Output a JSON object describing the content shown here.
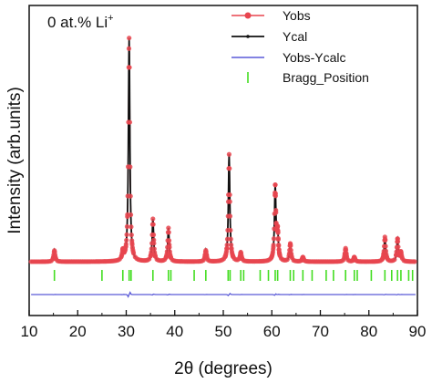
{
  "chart_data": {
    "type": "line",
    "title": "",
    "xlabel": "2θ (degrees)",
    "ylabel": "Intensity (arb.units)",
    "xlim": [
      10,
      90
    ],
    "xticks": [
      10,
      20,
      30,
      40,
      50,
      60,
      70,
      80,
      90
    ],
    "yticks_shown": false,
    "grid": false,
    "legend_position": "top-right",
    "annotation": {
      "text": "0 at.% Li",
      "superscript": "+"
    },
    "colors": {
      "yobs": "#e8454f",
      "ycal": "#111111",
      "diff": "#5a5ad8",
      "bragg": "#44dd22"
    },
    "series": [
      {
        "name": "Yobs",
        "style": "line-with-markers"
      },
      {
        "name": "Ycal",
        "style": "line"
      },
      {
        "name": "Yobs-Ycalc",
        "style": "line"
      },
      {
        "name": "Bragg_Position",
        "style": "tick-marks"
      }
    ],
    "background_level": 0.03,
    "peaks": [
      {
        "x": 15.2,
        "intensity": 0.05
      },
      {
        "x": 29.3,
        "intensity": 0.04
      },
      {
        "x": 30.6,
        "intensity": 1.0
      },
      {
        "x": 35.5,
        "intensity": 0.19
      },
      {
        "x": 38.7,
        "intensity": 0.15
      },
      {
        "x": 46.4,
        "intensity": 0.05
      },
      {
        "x": 51.2,
        "intensity": 0.48
      },
      {
        "x": 53.6,
        "intensity": 0.04
      },
      {
        "x": 60.7,
        "intensity": 0.33
      },
      {
        "x": 61.2,
        "intensity": 0.12
      },
      {
        "x": 63.8,
        "intensity": 0.08
      },
      {
        "x": 66.4,
        "intensity": 0.02
      },
      {
        "x": 75.2,
        "intensity": 0.06
      },
      {
        "x": 77.0,
        "intensity": 0.02
      },
      {
        "x": 83.3,
        "intensity": 0.11
      },
      {
        "x": 85.9,
        "intensity": 0.1
      },
      {
        "x": 86.6,
        "intensity": 0.04
      }
    ],
    "bragg_positions": [
      15.2,
      25.0,
      29.3,
      30.6,
      31.0,
      35.5,
      38.7,
      39.2,
      44.0,
      46.4,
      51.0,
      51.4,
      53.6,
      54.2,
      57.6,
      59.3,
      60.7,
      61.2,
      63.8,
      64.5,
      66.4,
      68.3,
      71.2,
      72.7,
      75.2,
      77.0,
      77.6,
      80.5,
      83.3,
      84.7,
      85.9,
      86.6,
      88.2,
      89.0
    ]
  }
}
